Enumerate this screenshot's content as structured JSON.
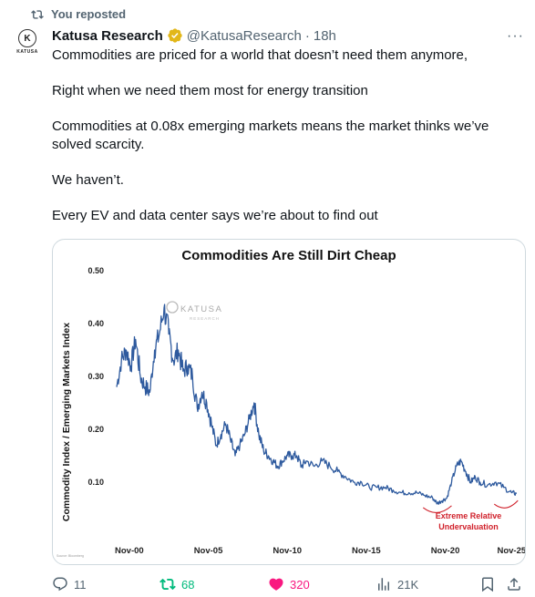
{
  "repost": {
    "label": "You reposted",
    "icon": "repost-icon"
  },
  "author": {
    "name": "Katusa Research",
    "handle": "@KatusaResearch",
    "separator": "·",
    "time": "18h",
    "verified": true,
    "avatar_text": "KATUSA",
    "avatar_initial": "K"
  },
  "more_label": "···",
  "post": {
    "lines": [
      "Commodities are priced for a world that doesn’t need them anymore,",
      "Right when we need them most for energy transition",
      "Commodities at 0.08x emerging markets means the market thinks we’ve solved scarcity.",
      "We haven’t.",
      "Every EV and data center says we’re about to find out"
    ]
  },
  "chart_data": {
    "type": "line",
    "title": "Commodities Are Still Dirt Cheap",
    "ylabel": "Commodity Index / Emerging Markets Index",
    "xlabel": "",
    "ylim": [
      0.0,
      0.5
    ],
    "yticks": [
      "0.50",
      "0.40",
      "0.30",
      "0.20",
      "0.10"
    ],
    "xticks": [
      "Nov-00",
      "Nov-05",
      "Nov-10",
      "Nov-15",
      "Nov-20",
      "Nov-25"
    ],
    "grid": false,
    "watermark": "KATUSA",
    "watermark_sub": "RESEARCH",
    "source": "Source: Bloomberg",
    "annotation": "Extreme Relative Undervaluation",
    "annotation_line1": "Extreme Relative",
    "annotation_line2": "Undervaluation",
    "line_color": "#2e5a9e",
    "annotation_color": "#d0212b",
    "series": [
      {
        "x": [
          2000.0,
          2000.3,
          2000.6,
          2000.9,
          2001.2,
          2001.5,
          2001.8,
          2002.1,
          2002.4,
          2002.7,
          2003.0,
          2003.3,
          2003.6,
          2003.9,
          2004.2,
          2004.5,
          2004.8,
          2005.1,
          2005.4,
          2005.7,
          2006.0,
          2006.3,
          2006.6,
          2006.9,
          2007.2,
          2007.5,
          2007.8,
          2008.1,
          2008.4,
          2008.7,
          2009.0,
          2009.3,
          2009.6,
          2009.9,
          2010.2,
          2010.5,
          2010.8,
          2011.1,
          2011.4,
          2011.7,
          2012.0,
          2012.5,
          2013.0,
          2013.5,
          2014.0,
          2014.5,
          2015.0,
          2015.5,
          2016.0,
          2016.5,
          2017.0,
          2017.5,
          2018.0,
          2018.5,
          2019.0,
          2019.5,
          2020.0,
          2020.3,
          2020.6,
          2020.9,
          2021.2,
          2021.5,
          2021.8,
          2022.1,
          2022.4,
          2022.7,
          2023.0,
          2023.5,
          2024.0,
          2024.5,
          2025.0,
          2025.3
        ],
        "values": [
          0.28,
          0.33,
          0.35,
          0.32,
          0.37,
          0.3,
          0.28,
          0.27,
          0.35,
          0.38,
          0.43,
          0.38,
          0.33,
          0.35,
          0.31,
          0.32,
          0.3,
          0.24,
          0.27,
          0.25,
          0.21,
          0.17,
          0.19,
          0.21,
          0.18,
          0.15,
          0.17,
          0.19,
          0.22,
          0.25,
          0.19,
          0.16,
          0.15,
          0.14,
          0.13,
          0.14,
          0.15,
          0.15,
          0.15,
          0.13,
          0.14,
          0.13,
          0.14,
          0.13,
          0.12,
          0.11,
          0.1,
          0.1,
          0.09,
          0.09,
          0.09,
          0.085,
          0.08,
          0.08,
          0.08,
          0.075,
          0.07,
          0.06,
          0.065,
          0.07,
          0.1,
          0.13,
          0.14,
          0.12,
          0.1,
          0.11,
          0.1,
          0.095,
          0.1,
          0.09,
          0.08,
          0.078
        ]
      }
    ]
  },
  "actions": {
    "reply": {
      "count": "11",
      "icon": "reply-icon"
    },
    "repost": {
      "count": "68",
      "icon": "repost-icon",
      "color": "#00ba7c"
    },
    "like": {
      "count": "320",
      "icon": "heart-icon",
      "color": "#f91880"
    },
    "views": {
      "count": "21K",
      "icon": "views-icon"
    },
    "bookmark": {
      "icon": "bookmark-icon"
    },
    "share": {
      "icon": "share-icon"
    }
  }
}
